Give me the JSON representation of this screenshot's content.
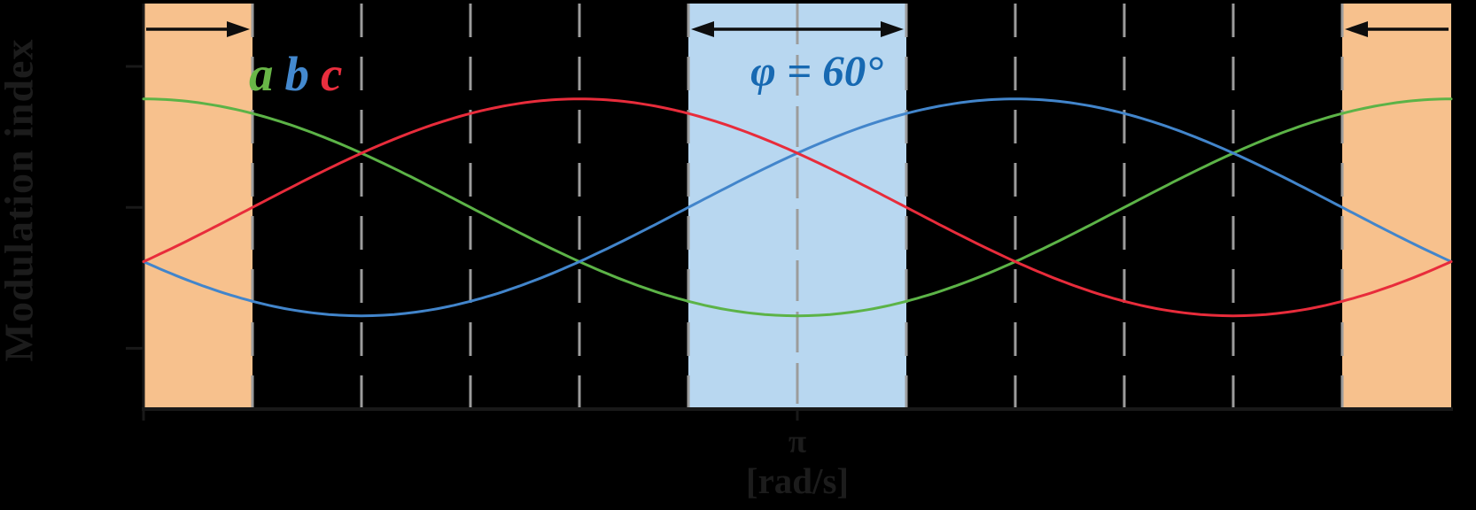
{
  "figure": {
    "background": "#000000",
    "ink_color": "#1c1c1c",
    "y_axis_label": "Modulation index",
    "x_tick_label": "π",
    "x_axis_unit_label": "[rad/s]",
    "phi_annotation": {
      "text": "φ = 60°",
      "color": "#1769b2"
    },
    "legend": {
      "items": [
        {
          "label": "a",
          "color": "#68b647"
        },
        {
          "label": "b",
          "color": "#4489cf"
        },
        {
          "label": "c",
          "color": "#e92e3e"
        }
      ]
    }
  },
  "chart_data": {
    "type": "line",
    "title": "",
    "ylabel": "Modulation index",
    "xlabel": "[rad/s]",
    "x_axis": {
      "unit": "deg",
      "range": [
        0,
        360
      ],
      "ticks": [
        0,
        180
      ],
      "pi_tick_deg": 180,
      "pi_tick_label": "π"
    },
    "y_axis": {
      "range": [
        -1.86,
        1.88
      ],
      "ticks": [
        1.3,
        0,
        -1.3
      ],
      "tick_labels_shown": false
    },
    "grid": true,
    "gridlines_deg": [
      30,
      60,
      90,
      120,
      150,
      180,
      210,
      240,
      270,
      300,
      330
    ],
    "solid_center_gridline_deg": 180,
    "grid_color": "#9c9c9c",
    "axis_color": "#191919",
    "arrow_color": "#0d0d0d",
    "series": [
      {
        "name": "a",
        "color": "#5cb347",
        "model": "cos(theta - phase)",
        "phase_deg": 0,
        "amplitude": 1,
        "midline": 0
      },
      {
        "name": "b",
        "color": "#4285cb",
        "model": "cos(theta - phase)",
        "phase_deg": 240,
        "amplitude": 1,
        "midline": 0
      },
      {
        "name": "c",
        "color": "#e82c3b",
        "model": "cos(theta - phase)",
        "phase_deg": 120,
        "amplitude": 1,
        "midline": 0
      }
    ],
    "bands": [
      {
        "id": "left-orange",
        "from_deg": 0,
        "to_deg": 30,
        "color": "#f7c18d",
        "arrow": "right"
      },
      {
        "id": "phi-blue",
        "from_deg": 150,
        "to_deg": 210,
        "color": "#b8d7f0",
        "arrow": "both",
        "label": "φ = 60°"
      },
      {
        "id": "right-orange",
        "from_deg": 330,
        "to_deg": 360,
        "color": "#f7c18d",
        "arrow": "left"
      }
    ]
  }
}
